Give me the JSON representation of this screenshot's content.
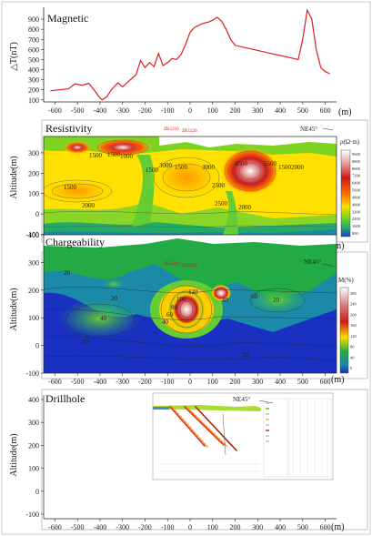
{
  "chart_data": [
    {
      "type": "line",
      "title": "Magnetic",
      "ylabel": "△T(nT)",
      "xlabel": "(m)",
      "ylim": [
        100,
        1000
      ],
      "xlim": [
        -650,
        650
      ],
      "yticks": [
        100,
        200,
        300,
        400,
        500,
        600,
        700,
        800,
        900
      ],
      "color": "#dd1f1f",
      "x": [
        -620,
        -580,
        -540,
        -510,
        -480,
        -450,
        -420,
        -400,
        -390,
        -370,
        -350,
        -320,
        -300,
        -270,
        -240,
        -220,
        -200,
        -180,
        -160,
        -140,
        -120,
        -100,
        -80,
        -60,
        -40,
        -20,
        0,
        20,
        40,
        60,
        80,
        100,
        120,
        140,
        160,
        180,
        200,
        240,
        280,
        320,
        360,
        400,
        440,
        480,
        500,
        520,
        540,
        560,
        580,
        600,
        620
      ],
      "y": [
        190,
        200,
        210,
        260,
        245,
        265,
        180,
        120,
        100,
        130,
        200,
        270,
        230,
        290,
        350,
        490,
        420,
        470,
        430,
        560,
        440,
        470,
        510,
        500,
        550,
        650,
        770,
        820,
        840,
        860,
        870,
        890,
        920,
        880,
        800,
        700,
        640,
        620,
        600,
        580,
        560,
        540,
        520,
        500,
        700,
        990,
        900,
        600,
        420,
        380,
        360
      ]
    },
    {
      "type": "heatmap",
      "title": "Resistivity",
      "ylabel": "Altitude(m)",
      "xlabel": "(m)",
      "direction": "NE45°",
      "unit_label": "ρ(Ω·m)",
      "ylim": [
        -100,
        380
      ],
      "yticks": [
        -100,
        0,
        100,
        200,
        300
      ],
      "hole_labels": [
        "ZK1216",
        "ZK1226"
      ],
      "contour_labels": [
        "1500",
        "2000",
        "1500",
        "1000",
        "3000",
        "2500",
        "1500",
        "2000",
        "3000",
        "4500",
        "5500",
        "1500",
        "2000",
        "2500",
        "1500",
        "1500"
      ],
      "colorbar_ticks": [
        "9600",
        "8800",
        "8000",
        "7200",
        "6400",
        "5600",
        "4800",
        "4000",
        "3200",
        "2400",
        "1600",
        "800"
      ]
    },
    {
      "type": "heatmap",
      "title": "Chargeability",
      "ylabel": "Altitude(m)",
      "xlabel": "(m)",
      "direction": "NE45°",
      "unit_label": "M(%)",
      "ylim": [
        -100,
        400
      ],
      "yticks": [
        -100,
        0,
        100,
        200,
        300,
        400
      ],
      "hole_labels": [
        "ZK1216",
        "ZK1226"
      ],
      "contour_labels": [
        "20",
        "40",
        "20",
        "40",
        "60",
        "80",
        "100",
        "120",
        "40",
        "60",
        "20",
        "20",
        "20"
      ],
      "colorbar_ticks": [
        "280",
        "240",
        "200",
        "160",
        "120",
        "80",
        "40",
        "0"
      ]
    },
    {
      "type": "table",
      "title": "Drillhole",
      "ylabel": "Altitude(m)",
      "xlabel": "(m)",
      "direction": "NE45°",
      "ylim": [
        -100,
        400
      ],
      "yticks": [
        -100,
        0,
        100,
        200,
        300,
        400
      ]
    }
  ],
  "shared_xticks": [
    -600,
    -500,
    -400,
    -300,
    -200,
    -100,
    0,
    100,
    200,
    300,
    400,
    500,
    600
  ],
  "xunit": "(m)"
}
